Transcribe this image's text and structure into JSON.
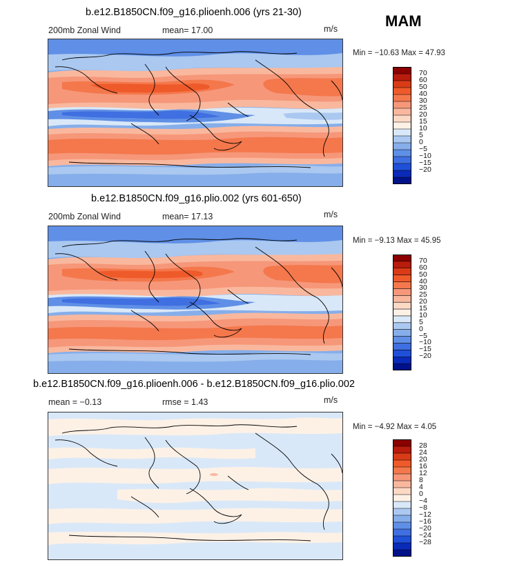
{
  "season": "MAM",
  "panels": [
    {
      "title": "b.e12.B1850CN.f09_g16.plioenh.006 (yrs 21-30)",
      "left_label": "200mb  Zonal Wind",
      "mid_label": "mean=   17.00",
      "units": "m/s",
      "minmax": "Min = −10.63  Max =   47.93",
      "levels": [
        "70",
        "60",
        "50",
        "40",
        "30",
        "25",
        "20",
        "15",
        "10",
        "5",
        "0",
        "−5",
        "−10",
        "−15",
        "−20"
      ],
      "colors": [
        "#8b0000",
        "#b71c0c",
        "#d93b17",
        "#ef5a2a",
        "#f4784c",
        "#f6977a",
        "#f9b89e",
        "#fcd9c5",
        "#fdf1e6",
        "#d9e8f8",
        "#aac8f0",
        "#86aeea",
        "#5f8fe6",
        "#3f6fe0",
        "#2050d8",
        "#0a2ab8",
        "#00128a"
      ]
    },
    {
      "title": "b.e12.B1850CN.f09_g16.plio.002 (yrs 601-650)",
      "left_label": "200mb  Zonal Wind",
      "mid_label": "mean=   17.13",
      "units": "m/s",
      "minmax": "Min =   −9.13  Max =   45.95",
      "levels": [
        "70",
        "60",
        "50",
        "40",
        "30",
        "25",
        "20",
        "15",
        "10",
        "5",
        "0",
        "−5",
        "−10",
        "−15",
        "−20"
      ],
      "colors": [
        "#8b0000",
        "#b71c0c",
        "#d93b17",
        "#ef5a2a",
        "#f4784c",
        "#f6977a",
        "#f9b89e",
        "#fcd9c5",
        "#fdf1e6",
        "#d9e8f8",
        "#aac8f0",
        "#86aeea",
        "#5f8fe6",
        "#3f6fe0",
        "#2050d8",
        "#0a2ab8",
        "#00128a"
      ]
    },
    {
      "title": "b.e12.B1850CN.f09_g16.plioenh.006 - b.e12.B1850CN.f09_g16.plio.002",
      "left_label": "mean =   −0.13",
      "mid_label": "rmse =    1.43",
      "units": "m/s",
      "minmax": "Min =  −4.92  Max =    4.05",
      "levels": [
        "28",
        "24",
        "20",
        "16",
        "12",
        "8",
        "4",
        "0",
        "−4",
        "−8",
        "−12",
        "−16",
        "−20",
        "−24",
        "−28"
      ],
      "colors": [
        "#8b0000",
        "#b71c0c",
        "#d93b17",
        "#ef5a2a",
        "#f4784c",
        "#f6977a",
        "#f9b89e",
        "#fcd9c5",
        "#fdf1e6",
        "#d9e8f8",
        "#aac8f0",
        "#86aeea",
        "#5f8fe6",
        "#3f6fe0",
        "#2050d8",
        "#0a2ab8",
        "#00128a"
      ]
    }
  ]
}
